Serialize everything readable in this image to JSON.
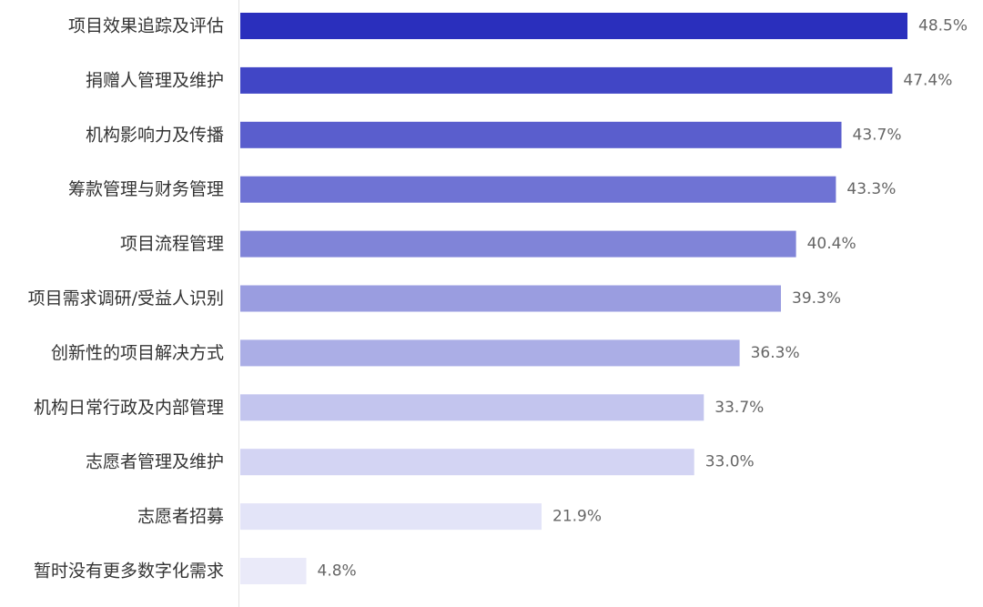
{
  "chart_data": {
    "type": "bar",
    "orientation": "horizontal",
    "categories": [
      "项目效果追踪及评估",
      "捐赠人管理及维护",
      "机构影响力及传播",
      "筹款管理与财务管理",
      "项目流程管理",
      "项目需求调研/受益人识别",
      "创新性的项目解决方式",
      "机构日常行政及内部管理",
      "志愿者管理及维护",
      "志愿者招募",
      "暂时没有更多数字化需求"
    ],
    "values": [
      48.5,
      47.4,
      43.7,
      43.3,
      40.4,
      39.3,
      36.3,
      33.7,
      33.0,
      21.9,
      4.8
    ],
    "value_labels": [
      "48.5%",
      "47.4%",
      "43.7%",
      "43.3%",
      "40.4%",
      "39.3%",
      "36.3%",
      "33.7%",
      "33.0%",
      "21.9%",
      "4.8%"
    ],
    "bar_colors": [
      "#2a2fbd",
      "#4146c6",
      "#5a5ecd",
      "#6f73d4",
      "#8084d8",
      "#9a9de0",
      "#abaee6",
      "#c3c5ee",
      "#d3d4f3",
      "#e3e4f8",
      "#eaeaf9"
    ],
    "xlim": [
      0,
      48.5
    ],
    "grid": false,
    "legend": "none",
    "title": "",
    "xlabel": "",
    "ylabel": ""
  }
}
